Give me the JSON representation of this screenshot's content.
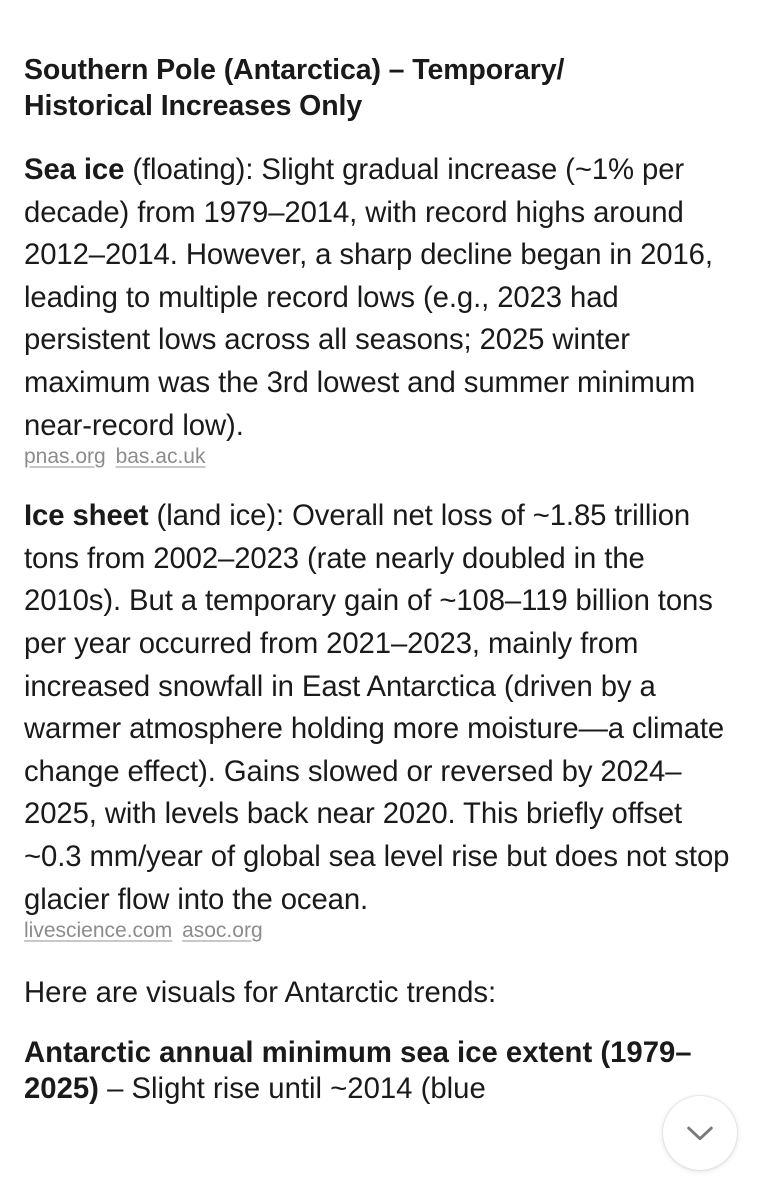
{
  "heading": {
    "line1": "Southern Pole (Antarctica) – Temporary/",
    "line2": "Historical Increases Only"
  },
  "sea_ice": {
    "term": "Sea ice",
    "text": " (floating): Slight gradual increase (~1% per decade) from 1979–2014, with record highs around 2012–2014. However, a sharp decline began in 2016, leading to multiple record lows (e.g., 2023 had persistent lows across all seasons; 2025 winter maximum was the 3rd lowest and summer minimum near-record low).",
    "sources": [
      "pnas.org",
      "bas.ac.uk"
    ]
  },
  "ice_sheet": {
    "term": "Ice sheet",
    "text": " (land ice): Overall net loss of ~1.85 trillion tons from 2002–2023 (rate nearly doubled in the 2010s). But a temporary gain of ~108–119 billion tons per year occurred from 2021–2023, mainly from increased snowfall in East Antarctica (driven by a warmer atmosphere holding more moisture—a climate change effect). Gains slowed or reversed by 2024–2025, with levels back near 2020. This briefly offset ~0.3 mm/year of global sea level rise but does not stop glacier flow into the ocean.",
    "sources": [
      "livescience.com",
      "asoc.org"
    ]
  },
  "visuals_intro": "Here are visuals for Antarctic trends:",
  "visual_item": {
    "title": "Antarctic annual minimum sea ice extent (1979–2025)",
    "text": " – Slight rise until ~2014 (blue"
  },
  "scroll_button": {
    "icon": "chevron-down-icon"
  }
}
